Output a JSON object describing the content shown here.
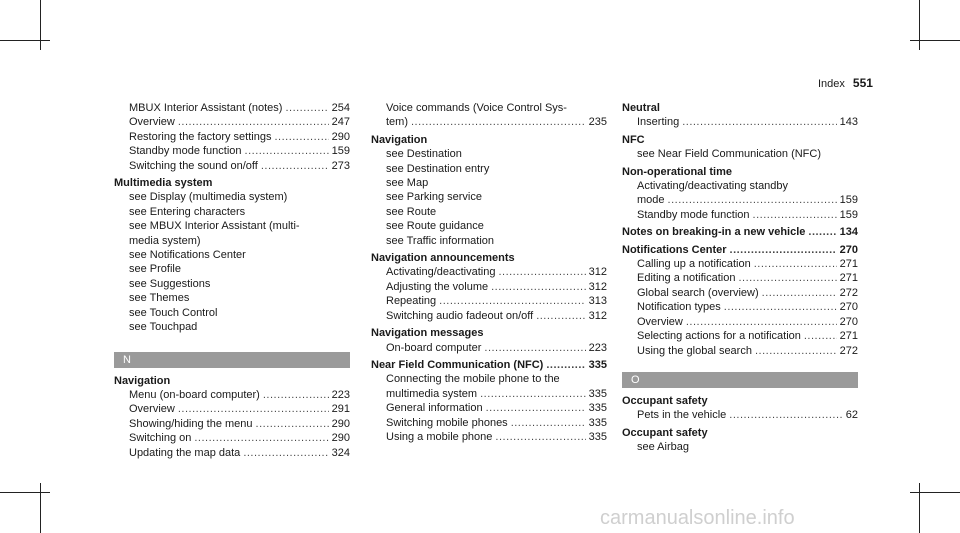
{
  "header": {
    "label": "Index",
    "page": "551"
  },
  "watermark": "carmanualsonline.info",
  "col1": {
    "top": [
      {
        "kind": "sub",
        "text": "MBUX Interior Assistant (notes)",
        "page": "254"
      },
      {
        "kind": "sub",
        "text": "Overview",
        "page": "247"
      },
      {
        "kind": "sub",
        "text": "Restoring the factory settings",
        "page": "290"
      },
      {
        "kind": "sub",
        "text": "Standby mode function",
        "page": "159"
      },
      {
        "kind": "sub",
        "text": "Switching the sound on/off",
        "page": "273"
      },
      {
        "kind": "head",
        "text": "Multimedia system",
        "page": ""
      },
      {
        "kind": "see",
        "text": "see Display (multimedia system)"
      },
      {
        "kind": "see",
        "text": "see Entering characters"
      },
      {
        "kind": "see",
        "text": "see MBUX Interior Assistant (multi-"
      },
      {
        "kind": "see",
        "text": "media system)"
      },
      {
        "kind": "see",
        "text": "see Notifications Center"
      },
      {
        "kind": "see",
        "text": "see Profile"
      },
      {
        "kind": "see",
        "text": "see Suggestions"
      },
      {
        "kind": "see",
        "text": "see Themes"
      },
      {
        "kind": "see",
        "text": "see Touch Control"
      },
      {
        "kind": "see",
        "text": "see Touchpad"
      }
    ],
    "section": "N",
    "bottom": [
      {
        "kind": "head",
        "text": "Navigation",
        "page": ""
      },
      {
        "kind": "sub",
        "text": "Menu (on-board computer)",
        "page": "223"
      },
      {
        "kind": "sub",
        "text": "Overview",
        "page": "291"
      },
      {
        "kind": "sub",
        "text": "Showing/hiding the menu",
        "page": "290"
      },
      {
        "kind": "sub",
        "text": "Switching on",
        "page": "290"
      },
      {
        "kind": "sub",
        "text": "Updating the map data",
        "page": "324"
      }
    ]
  },
  "col2": [
    {
      "kind": "see",
      "text": "Voice commands (Voice Control Sys-"
    },
    {
      "kind": "sub",
      "text": "tem)",
      "page": "235"
    },
    {
      "kind": "head",
      "text": "Navigation",
      "page": ""
    },
    {
      "kind": "see",
      "text": "see Destination"
    },
    {
      "kind": "see",
      "text": "see Destination entry"
    },
    {
      "kind": "see",
      "text": "see Map"
    },
    {
      "kind": "see",
      "text": "see Parking service"
    },
    {
      "kind": "see",
      "text": "see Route"
    },
    {
      "kind": "see",
      "text": "see Route guidance"
    },
    {
      "kind": "see",
      "text": "see Traffic information"
    },
    {
      "kind": "head",
      "text": "Navigation announcements",
      "page": ""
    },
    {
      "kind": "sub",
      "text": "Activating/deactivating",
      "page": "312"
    },
    {
      "kind": "sub",
      "text": "Adjusting the volume",
      "page": "312"
    },
    {
      "kind": "sub",
      "text": "Repeating",
      "page": "313"
    },
    {
      "kind": "sub",
      "text": "Switching audio fadeout on/off",
      "page": "312"
    },
    {
      "kind": "head",
      "text": "Navigation messages",
      "page": ""
    },
    {
      "kind": "sub",
      "text": "On-board computer",
      "page": "223"
    },
    {
      "kind": "head",
      "text": "Near Field Communication (NFC)",
      "page": "335"
    },
    {
      "kind": "see",
      "text": "Connecting the mobile phone to the"
    },
    {
      "kind": "sub",
      "text": "multimedia system",
      "page": "335"
    },
    {
      "kind": "sub",
      "text": "General information",
      "page": "335"
    },
    {
      "kind": "sub",
      "text": "Switching mobile phones",
      "page": "335"
    },
    {
      "kind": "sub",
      "text": "Using a mobile phone",
      "page": "335"
    }
  ],
  "col3": {
    "top": [
      {
        "kind": "head",
        "text": "Neutral",
        "page": ""
      },
      {
        "kind": "sub",
        "text": "Inserting",
        "page": "143"
      },
      {
        "kind": "head",
        "text": "NFC",
        "page": ""
      },
      {
        "kind": "see",
        "text": "see Near Field Communication (NFC)"
      },
      {
        "kind": "head",
        "text": "Non-operational time",
        "page": ""
      },
      {
        "kind": "see",
        "text": "Activating/deactivating standby"
      },
      {
        "kind": "sub",
        "text": "mode",
        "page": "159"
      },
      {
        "kind": "sub",
        "text": "Standby mode function",
        "page": "159"
      },
      {
        "kind": "head",
        "text": "Notes on breaking-in a new vehicle",
        "page": "134"
      },
      {
        "kind": "head",
        "text": "Notifications Center",
        "page": "270"
      },
      {
        "kind": "sub",
        "text": "Calling up a notification",
        "page": "271"
      },
      {
        "kind": "sub",
        "text": "Editing a notification",
        "page": "271"
      },
      {
        "kind": "sub",
        "text": "Global search (overview)",
        "page": "272"
      },
      {
        "kind": "sub",
        "text": "Notification types",
        "page": "270"
      },
      {
        "kind": "sub",
        "text": "Overview",
        "page": "270"
      },
      {
        "kind": "sub",
        "text": "Selecting actions for a notification",
        "page": "271"
      },
      {
        "kind": "sub",
        "text": "Using the global search",
        "page": "272"
      }
    ],
    "section": "O",
    "bottom": [
      {
        "kind": "head",
        "text": "Occupant safety",
        "page": ""
      },
      {
        "kind": "sub",
        "text": "Pets in the vehicle",
        "page": "62"
      },
      {
        "kind": "head",
        "text": "Occupant safety",
        "page": ""
      },
      {
        "kind": "see",
        "text": "see Airbag"
      }
    ]
  }
}
